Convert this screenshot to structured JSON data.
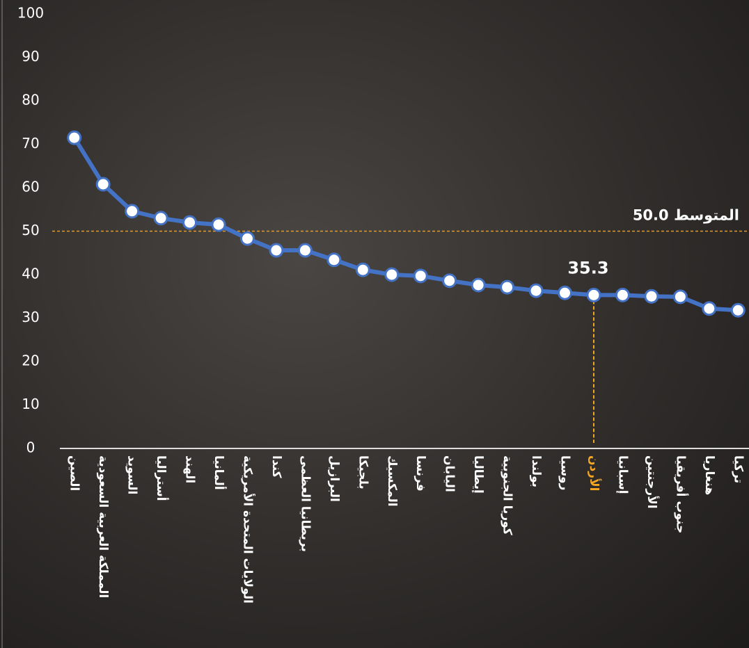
{
  "chart_data": {
    "type": "line",
    "categories": [
      "الصين",
      "المملكة العربية السعودية",
      "السويد",
      "أستراليا",
      "الهند",
      "ألمانيا",
      "الولايات المتحدة الأمريكية",
      "كندا",
      "بريطانيا العظمى",
      "البرازيل",
      "بلجيكا",
      "المكسيك",
      "فرنسا",
      "اليابان",
      "إيطاليا",
      "كوريا الجنوبية",
      "بولندا",
      "روسيا",
      "الأردن",
      "إسبانيا",
      "الأرجنتين",
      "جنوب أفريقيا",
      "هنغاريا",
      "تركيا"
    ],
    "values": [
      71.5,
      60.8,
      54.6,
      53.0,
      52.0,
      51.5,
      48.3,
      45.6,
      45.6,
      43.4,
      41.1,
      40.0,
      39.7,
      38.6,
      37.6,
      37.1,
      36.3,
      35.8,
      35.3,
      35.3,
      35.0,
      34.9,
      32.2,
      31.8
    ],
    "color": "#4472c4",
    "ylim": [
      0,
      100
    ],
    "yticks": [
      0,
      10,
      20,
      30,
      40,
      50,
      60,
      70,
      80,
      90,
      100
    ],
    "average_line": {
      "value": 50,
      "label": "المتوسط 50.0",
      "color": "#e39a2d"
    },
    "highlight": {
      "index": 18,
      "label": "35.3",
      "color": "#f5a623"
    }
  }
}
